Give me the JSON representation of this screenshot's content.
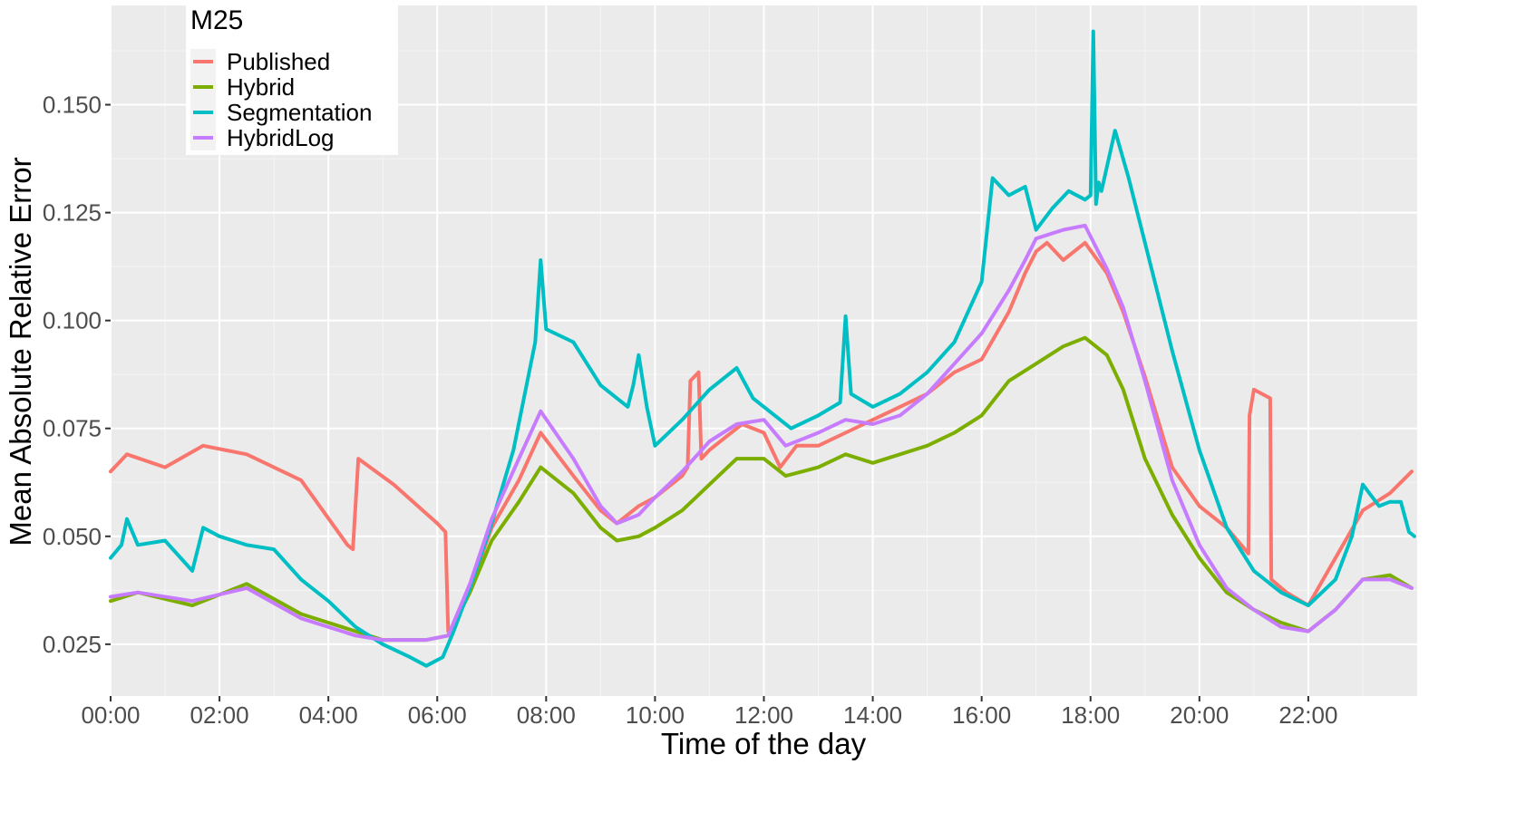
{
  "chart_data": {
    "type": "line",
    "xlabel": "Time of the day",
    "ylabel": "Mean Absolute Relative Error",
    "x_unit": "hour of day",
    "xlim": [
      0,
      24
    ],
    "ylim": [
      0.013,
      0.173
    ],
    "x_ticks": [
      {
        "value": 0,
        "label": "00:00"
      },
      {
        "value": 2,
        "label": "02:00"
      },
      {
        "value": 4,
        "label": "04:00"
      },
      {
        "value": 6,
        "label": "06:00"
      },
      {
        "value": 8,
        "label": "08:00"
      },
      {
        "value": 10,
        "label": "10:00"
      },
      {
        "value": 12,
        "label": "12:00"
      },
      {
        "value": 14,
        "label": "14:00"
      },
      {
        "value": 16,
        "label": "16:00"
      },
      {
        "value": 18,
        "label": "18:00"
      },
      {
        "value": 20,
        "label": "20:00"
      },
      {
        "value": 22,
        "label": "22:00"
      }
    ],
    "y_ticks": [
      {
        "value": 0.025,
        "label": "0.025"
      },
      {
        "value": 0.05,
        "label": "0.050"
      },
      {
        "value": 0.075,
        "label": "0.075"
      },
      {
        "value": 0.1,
        "label": "0.100"
      },
      {
        "value": 0.125,
        "label": "0.125"
      },
      {
        "value": 0.15,
        "label": "0.150"
      }
    ],
    "grid": true,
    "background": "#ebebeb",
    "legend": {
      "title": "M25",
      "placement": "top-left"
    },
    "series": [
      {
        "name": "Published",
        "color": "#F8766D",
        "x": [
          0,
          0.3,
          1,
          1.7,
          2.5,
          3.5,
          4.35,
          4.45,
          4.55,
          5.2,
          6.0,
          6.15,
          6.2,
          6.35,
          6.6,
          7.0,
          7.5,
          7.9,
          8.5,
          9.0,
          9.3,
          9.7,
          10.0,
          10.5,
          10.6,
          10.65,
          10.8,
          10.85,
          11.0,
          11.3,
          11.6,
          12.0,
          12.3,
          12.6,
          13.0,
          13.5,
          14.0,
          14.5,
          15.0,
          15.5,
          16.0,
          16.5,
          16.8,
          17.0,
          17.2,
          17.5,
          17.9,
          18.3,
          18.6,
          19.0,
          19.5,
          20.0,
          20.5,
          20.9,
          20.92,
          21.0,
          21.3,
          21.32,
          21.6,
          22.0,
          22.5,
          23.0,
          23.5,
          23.9
        ],
        "y": [
          0.065,
          0.069,
          0.066,
          0.071,
          0.069,
          0.063,
          0.048,
          0.047,
          0.068,
          0.062,
          0.053,
          0.051,
          0.028,
          0.03,
          0.038,
          0.052,
          0.063,
          0.074,
          0.064,
          0.056,
          0.053,
          0.057,
          0.059,
          0.064,
          0.066,
          0.086,
          0.088,
          0.068,
          0.07,
          0.073,
          0.076,
          0.074,
          0.066,
          0.071,
          0.071,
          0.074,
          0.077,
          0.08,
          0.083,
          0.088,
          0.091,
          0.102,
          0.111,
          0.116,
          0.118,
          0.114,
          0.118,
          0.111,
          0.102,
          0.087,
          0.066,
          0.057,
          0.052,
          0.046,
          0.078,
          0.084,
          0.082,
          0.04,
          0.037,
          0.034,
          0.045,
          0.056,
          0.06,
          0.065
        ]
      },
      {
        "name": "Hybrid",
        "color": "#7CAE00",
        "x": [
          0,
          0.5,
          1.5,
          2.5,
          3.5,
          4.5,
          5.0,
          5.8,
          6.2,
          6.6,
          7.0,
          7.5,
          7.9,
          8.5,
          9.0,
          9.3,
          9.7,
          10.0,
          10.5,
          11.0,
          11.5,
          12.0,
          12.4,
          13.0,
          13.5,
          14.0,
          14.5,
          15.0,
          15.5,
          16.0,
          16.5,
          17.0,
          17.5,
          17.9,
          18.3,
          18.6,
          19.0,
          19.5,
          20.0,
          20.5,
          21.0,
          21.5,
          22.0,
          22.5,
          23.0,
          23.5,
          23.9
        ],
        "y": [
          0.035,
          0.037,
          0.034,
          0.039,
          0.032,
          0.028,
          0.026,
          0.026,
          0.027,
          0.037,
          0.049,
          0.058,
          0.066,
          0.06,
          0.052,
          0.049,
          0.05,
          0.052,
          0.056,
          0.062,
          0.068,
          0.068,
          0.064,
          0.066,
          0.069,
          0.067,
          0.069,
          0.071,
          0.074,
          0.078,
          0.086,
          0.09,
          0.094,
          0.096,
          0.092,
          0.084,
          0.068,
          0.055,
          0.045,
          0.037,
          0.033,
          0.03,
          0.028,
          0.033,
          0.04,
          0.041,
          0.038
        ]
      },
      {
        "name": "Segmentation",
        "color": "#00BFC4",
        "x": [
          0,
          0.2,
          0.3,
          0.5,
          1.0,
          1.5,
          1.7,
          2.0,
          2.5,
          3.0,
          3.5,
          4.0,
          4.5,
          5.0,
          5.5,
          5.8,
          6.1,
          6.3,
          6.6,
          7.0,
          7.4,
          7.8,
          7.9,
          8.0,
          8.5,
          9.0,
          9.5,
          9.6,
          9.7,
          9.85,
          10.0,
          10.5,
          11.0,
          11.5,
          11.8,
          12.0,
          12.5,
          13.0,
          13.4,
          13.5,
          13.6,
          14.0,
          14.5,
          15.0,
          15.5,
          16.0,
          16.2,
          16.5,
          16.8,
          17.0,
          17.3,
          17.6,
          17.9,
          18.0,
          18.05,
          18.1,
          18.15,
          18.2,
          18.45,
          18.7,
          19.0,
          19.5,
          20.0,
          20.5,
          21.0,
          21.5,
          22.0,
          22.5,
          22.8,
          23.0,
          23.3,
          23.5,
          23.7,
          23.85,
          23.95
        ],
        "y": [
          0.045,
          0.048,
          0.054,
          0.048,
          0.049,
          0.042,
          0.052,
          0.05,
          0.048,
          0.047,
          0.04,
          0.035,
          0.029,
          0.025,
          0.022,
          0.02,
          0.022,
          0.028,
          0.038,
          0.053,
          0.07,
          0.095,
          0.114,
          0.098,
          0.095,
          0.085,
          0.08,
          0.085,
          0.092,
          0.08,
          0.071,
          0.077,
          0.084,
          0.089,
          0.082,
          0.08,
          0.075,
          0.078,
          0.081,
          0.101,
          0.083,
          0.08,
          0.083,
          0.088,
          0.095,
          0.109,
          0.133,
          0.129,
          0.131,
          0.121,
          0.126,
          0.13,
          0.128,
          0.129,
          0.167,
          0.127,
          0.132,
          0.13,
          0.144,
          0.133,
          0.118,
          0.093,
          0.07,
          0.052,
          0.042,
          0.037,
          0.034,
          0.04,
          0.05,
          0.062,
          0.057,
          0.058,
          0.058,
          0.051,
          0.05
        ]
      },
      {
        "name": "HybridLog",
        "color": "#C77CFF",
        "x": [
          0,
          0.5,
          1.5,
          2.5,
          3.5,
          4.5,
          5.0,
          5.8,
          6.2,
          6.6,
          7.0,
          7.5,
          7.9,
          8.5,
          9.0,
          9.3,
          9.7,
          10.0,
          10.5,
          11.0,
          11.5,
          12.0,
          12.4,
          13.0,
          13.5,
          14.0,
          14.5,
          15.0,
          15.5,
          16.0,
          16.5,
          16.8,
          17.0,
          17.5,
          17.9,
          18.3,
          18.6,
          19.0,
          19.5,
          20.0,
          20.5,
          21.0,
          21.5,
          22.0,
          22.5,
          23.0,
          23.5,
          23.9
        ],
        "y": [
          0.036,
          0.037,
          0.035,
          0.038,
          0.031,
          0.027,
          0.026,
          0.026,
          0.027,
          0.039,
          0.054,
          0.068,
          0.079,
          0.068,
          0.057,
          0.053,
          0.055,
          0.059,
          0.065,
          0.072,
          0.076,
          0.077,
          0.071,
          0.074,
          0.077,
          0.076,
          0.078,
          0.083,
          0.09,
          0.097,
          0.107,
          0.114,
          0.119,
          0.121,
          0.122,
          0.112,
          0.103,
          0.086,
          0.063,
          0.048,
          0.038,
          0.033,
          0.029,
          0.028,
          0.033,
          0.04,
          0.04,
          0.038
        ]
      }
    ]
  }
}
